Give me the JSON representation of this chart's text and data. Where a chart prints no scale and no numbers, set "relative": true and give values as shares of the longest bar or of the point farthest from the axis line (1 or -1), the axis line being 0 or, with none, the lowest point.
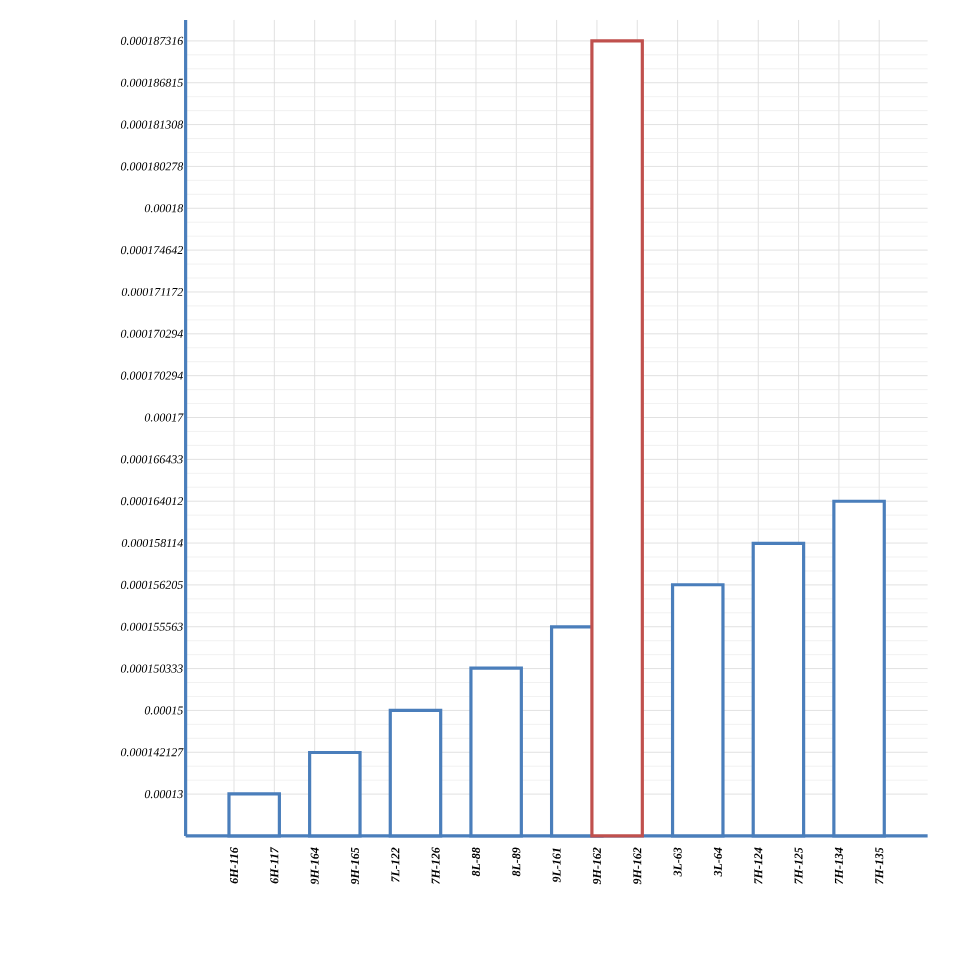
{
  "chart_data": {
    "type": "bar",
    "relative": true,
    "categories": [
      "6H-116",
      "6H-117",
      "9H-164",
      "9H-165",
      "7L-122",
      "7H-126",
      "8L-88",
      "8L-89",
      "9L-161",
      "9H-162",
      "9H-162",
      "3L-63",
      "3L-64",
      "7H-124",
      "7H-125",
      "7H-134",
      "7H-135"
    ],
    "values": [
      0.053,
      null,
      0.105,
      null,
      0.158,
      null,
      0.211,
      null,
      0.263,
      1,
      null,
      0.316,
      null,
      0.368,
      null,
      0.421,
      null
    ],
    "colors": [
      "#4a7ebb",
      null,
      "#4a7ebb",
      null,
      "#4a7ebb",
      null,
      "#4a7ebb",
      null,
      "#4a7ebb",
      "#c0504d",
      null,
      "#4a7ebb",
      null,
      "#4a7ebb",
      null,
      "#4a7ebb",
      null
    ],
    "annotations": [
      "0.00013",
      "0.000142127",
      "0.00015",
      "0.000150333",
      "0.000155563",
      "0.000156205",
      "0.000158114",
      "0.000164012",
      "0.000166433",
      "0.00017",
      "0.000170294",
      "0.000170294",
      "0.000171172",
      "0.000174642",
      "0.00018",
      "0.000180278",
      "0.000181308",
      "0.000186815",
      "0.000187316"
    ],
    "grid": true
  }
}
